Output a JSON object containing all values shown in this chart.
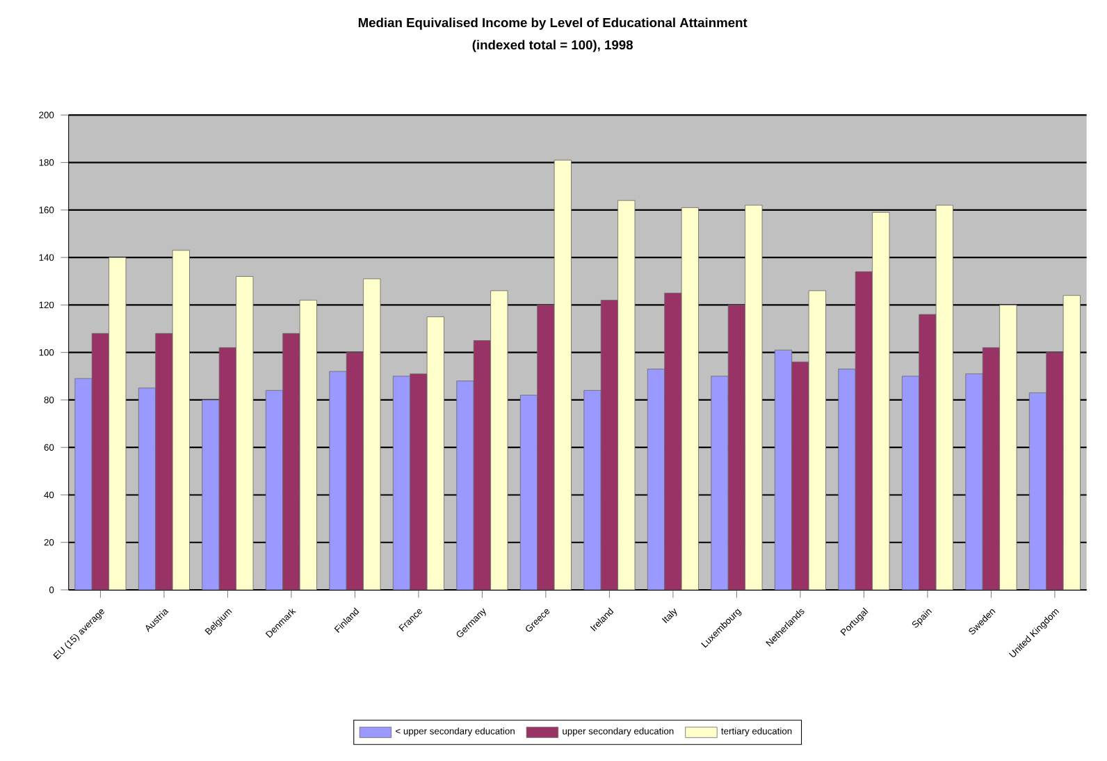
{
  "chart_data": {
    "type": "bar",
    "title": "Median Equivalised Income by Level of Educational Attainment",
    "subtitle": "(indexed total = 100), 1998",
    "categories": [
      "EU (15) average",
      "Austria",
      "Belgium",
      "Denmark",
      "Finland",
      "France",
      "Germany",
      "Greece",
      "Ireland",
      "Italy",
      "Luxembourg",
      "Netherlands",
      "Portugal",
      "Spain",
      "Sweden",
      "United Kingdom"
    ],
    "series": [
      {
        "name": "< upper secondary education",
        "color": "#9999ff",
        "values": [
          89,
          85,
          80,
          84,
          92,
          90,
          88,
          82,
          84,
          93,
          90,
          101,
          93,
          90,
          91,
          83
        ]
      },
      {
        "name": "upper secondary education",
        "color": "#993366",
        "values": [
          108,
          108,
          102,
          108,
          100,
          91,
          105,
          120,
          122,
          125,
          120,
          96,
          134,
          116,
          102,
          100
        ]
      },
      {
        "name": "tertiary education",
        "color": "#ffffcc",
        "values": [
          140,
          143,
          132,
          122,
          131,
          115,
          126,
          181,
          164,
          161,
          162,
          126,
          159,
          162,
          120,
          124
        ]
      }
    ],
    "ylim": [
      0,
      200
    ],
    "yticks": [
      0,
      20,
      40,
      60,
      80,
      100,
      120,
      140,
      160,
      180,
      200
    ],
    "grid": "y",
    "legend": "bottom"
  }
}
